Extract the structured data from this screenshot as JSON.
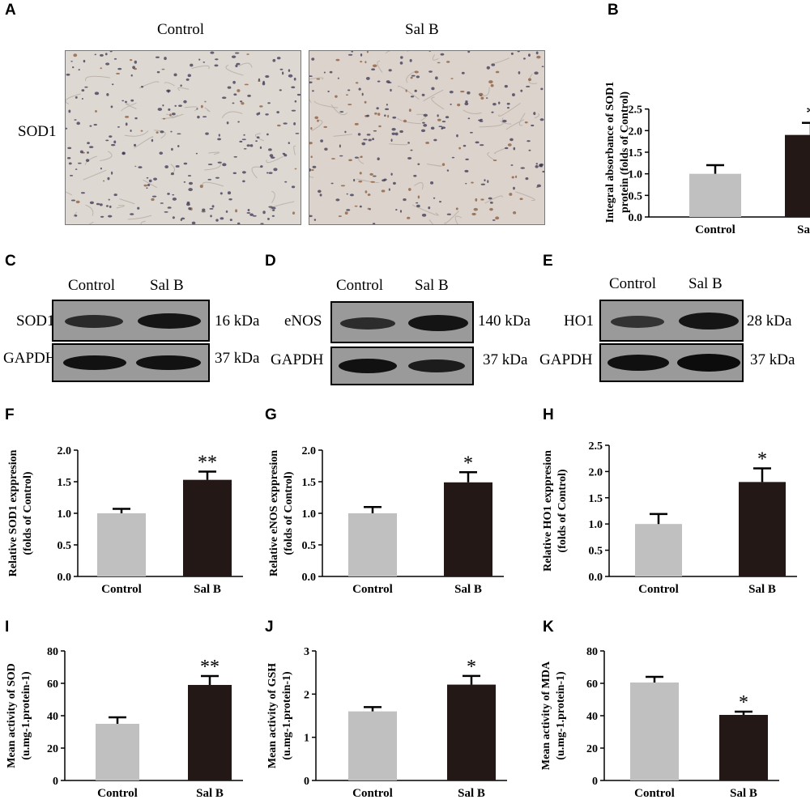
{
  "panel_letters": [
    "A",
    "B",
    "C",
    "D",
    "E",
    "F",
    "G",
    "H",
    "I",
    "J",
    "K"
  ],
  "micrograph": {
    "col_labels": [
      "Control",
      "Sal B"
    ],
    "row_label": "SOD1",
    "colors": {
      "ctrl_bg": "#ddd8d2",
      "salb_bg": "#dcd4cc",
      "nucleus": "#3a3550",
      "brown": "#8a5a3a"
    }
  },
  "blots": [
    {
      "lanes": [
        "Control",
        "Sal B"
      ],
      "target": "SOD1",
      "target_kda": "16 kDa",
      "loading": "GAPDH",
      "loading_kda": "37 kDa"
    },
    {
      "lanes": [
        "Control",
        "Sal B"
      ],
      "target": "eNOS",
      "target_kda": "140 kDa",
      "loading": "GAPDH",
      "loading_kda": "37 kDa"
    },
    {
      "lanes": [
        "Control",
        "Sal B"
      ],
      "target": "HO1",
      "target_kda": "28 kDa",
      "loading": "GAPDH",
      "loading_kda": "37 kDa"
    }
  ],
  "colors": {
    "control_bar": "#c0c0c0",
    "salb_bar": "#231815"
  },
  "chart_data": [
    {
      "id": "B",
      "type": "bar",
      "categories": [
        "Control",
        "Sal B"
      ],
      "values": [
        1.0,
        1.9
      ],
      "errors": [
        0.2,
        0.28
      ],
      "significance": [
        "",
        "*"
      ],
      "ylabel_lines": [
        "Integral absorbance of SOD1",
        "protein (folds of Control)"
      ],
      "ylim": [
        0,
        3.0
      ],
      "yticks": [
        "0.0",
        "0.5",
        "1.0",
        "1.5",
        "2.0",
        "2.5"
      ],
      "ytick_values": [
        0,
        0.5,
        1.0,
        1.5,
        2.0,
        2.5
      ]
    },
    {
      "id": "F",
      "type": "bar",
      "categories": [
        "Control",
        "Sal B"
      ],
      "values": [
        1.0,
        1.53
      ],
      "errors": [
        0.07,
        0.13
      ],
      "significance": [
        "",
        "**"
      ],
      "ylabel_lines": [
        "Relative SOD1 exppresion",
        "(folds of Control)"
      ],
      "ylim": [
        0,
        2.0
      ],
      "yticks": [
        "0.0",
        "0.5",
        "1.0",
        "1.5",
        "2.0"
      ],
      "ytick_values": [
        0,
        0.5,
        1.0,
        1.5,
        2.0
      ]
    },
    {
      "id": "G",
      "type": "bar",
      "categories": [
        "Control",
        "Sal B"
      ],
      "values": [
        1.0,
        1.49
      ],
      "errors": [
        0.1,
        0.16
      ],
      "significance": [
        "",
        "*"
      ],
      "ylabel_lines": [
        "Relative eNOS exppresion",
        "(folds of Control)"
      ],
      "ylim": [
        0,
        2.0
      ],
      "yticks": [
        "0.0",
        "0.5",
        "1.0",
        "1.5",
        "2.0"
      ],
      "ytick_values": [
        0,
        0.5,
        1.0,
        1.5,
        2.0
      ]
    },
    {
      "id": "H",
      "type": "bar",
      "categories": [
        "Control",
        "Sal B"
      ],
      "values": [
        1.0,
        1.8
      ],
      "errors": [
        0.19,
        0.26
      ],
      "significance": [
        "",
        "*"
      ],
      "ylabel_lines": [
        "Relative HO1 exppresion",
        "(folds of Control)"
      ],
      "ylim": [
        0,
        2.5
      ],
      "yticks": [
        "0.0",
        "0.5",
        "1.0",
        "1.5",
        "2.0",
        "2.5"
      ],
      "ytick_values": [
        0,
        0.5,
        1.0,
        1.5,
        2.0,
        2.5
      ]
    },
    {
      "id": "I",
      "type": "bar",
      "categories": [
        "Control",
        "Sal B"
      ],
      "values": [
        35,
        59
      ],
      "errors": [
        4,
        5.5
      ],
      "significance": [
        "",
        "**"
      ],
      "ylabel_lines": [
        "Mean activity of  SOD",
        "(u.mg-1.protein-1)"
      ],
      "ylim": [
        0,
        80
      ],
      "yticks": [
        "0",
        "20",
        "40",
        "60",
        "80"
      ],
      "ytick_values": [
        0,
        20,
        40,
        60,
        80
      ]
    },
    {
      "id": "J",
      "type": "bar",
      "categories": [
        "Control",
        "Sal B"
      ],
      "values": [
        1.6,
        2.22
      ],
      "errors": [
        0.1,
        0.2
      ],
      "significance": [
        "",
        "*"
      ],
      "ylabel_lines": [
        "Mean activity of   GSH",
        "(u.mg-1.protein-1)"
      ],
      "ylim": [
        0,
        3
      ],
      "yticks": [
        "0",
        "1",
        "2",
        "3"
      ],
      "ytick_values": [
        0,
        1,
        2,
        3
      ]
    },
    {
      "id": "K",
      "type": "bar",
      "categories": [
        "Control",
        "Sal B"
      ],
      "values": [
        60.5,
        40.5
      ],
      "errors": [
        3.5,
        2.0
      ],
      "significance": [
        "",
        "*"
      ],
      "ylabel_lines": [
        "Mean activity of  MDA",
        "(u.mg-1.protein-1)"
      ],
      "ylim": [
        0,
        80
      ],
      "yticks": [
        "0",
        "20",
        "40",
        "60",
        "80"
      ],
      "ytick_values": [
        0,
        20,
        40,
        60,
        80
      ]
    }
  ]
}
